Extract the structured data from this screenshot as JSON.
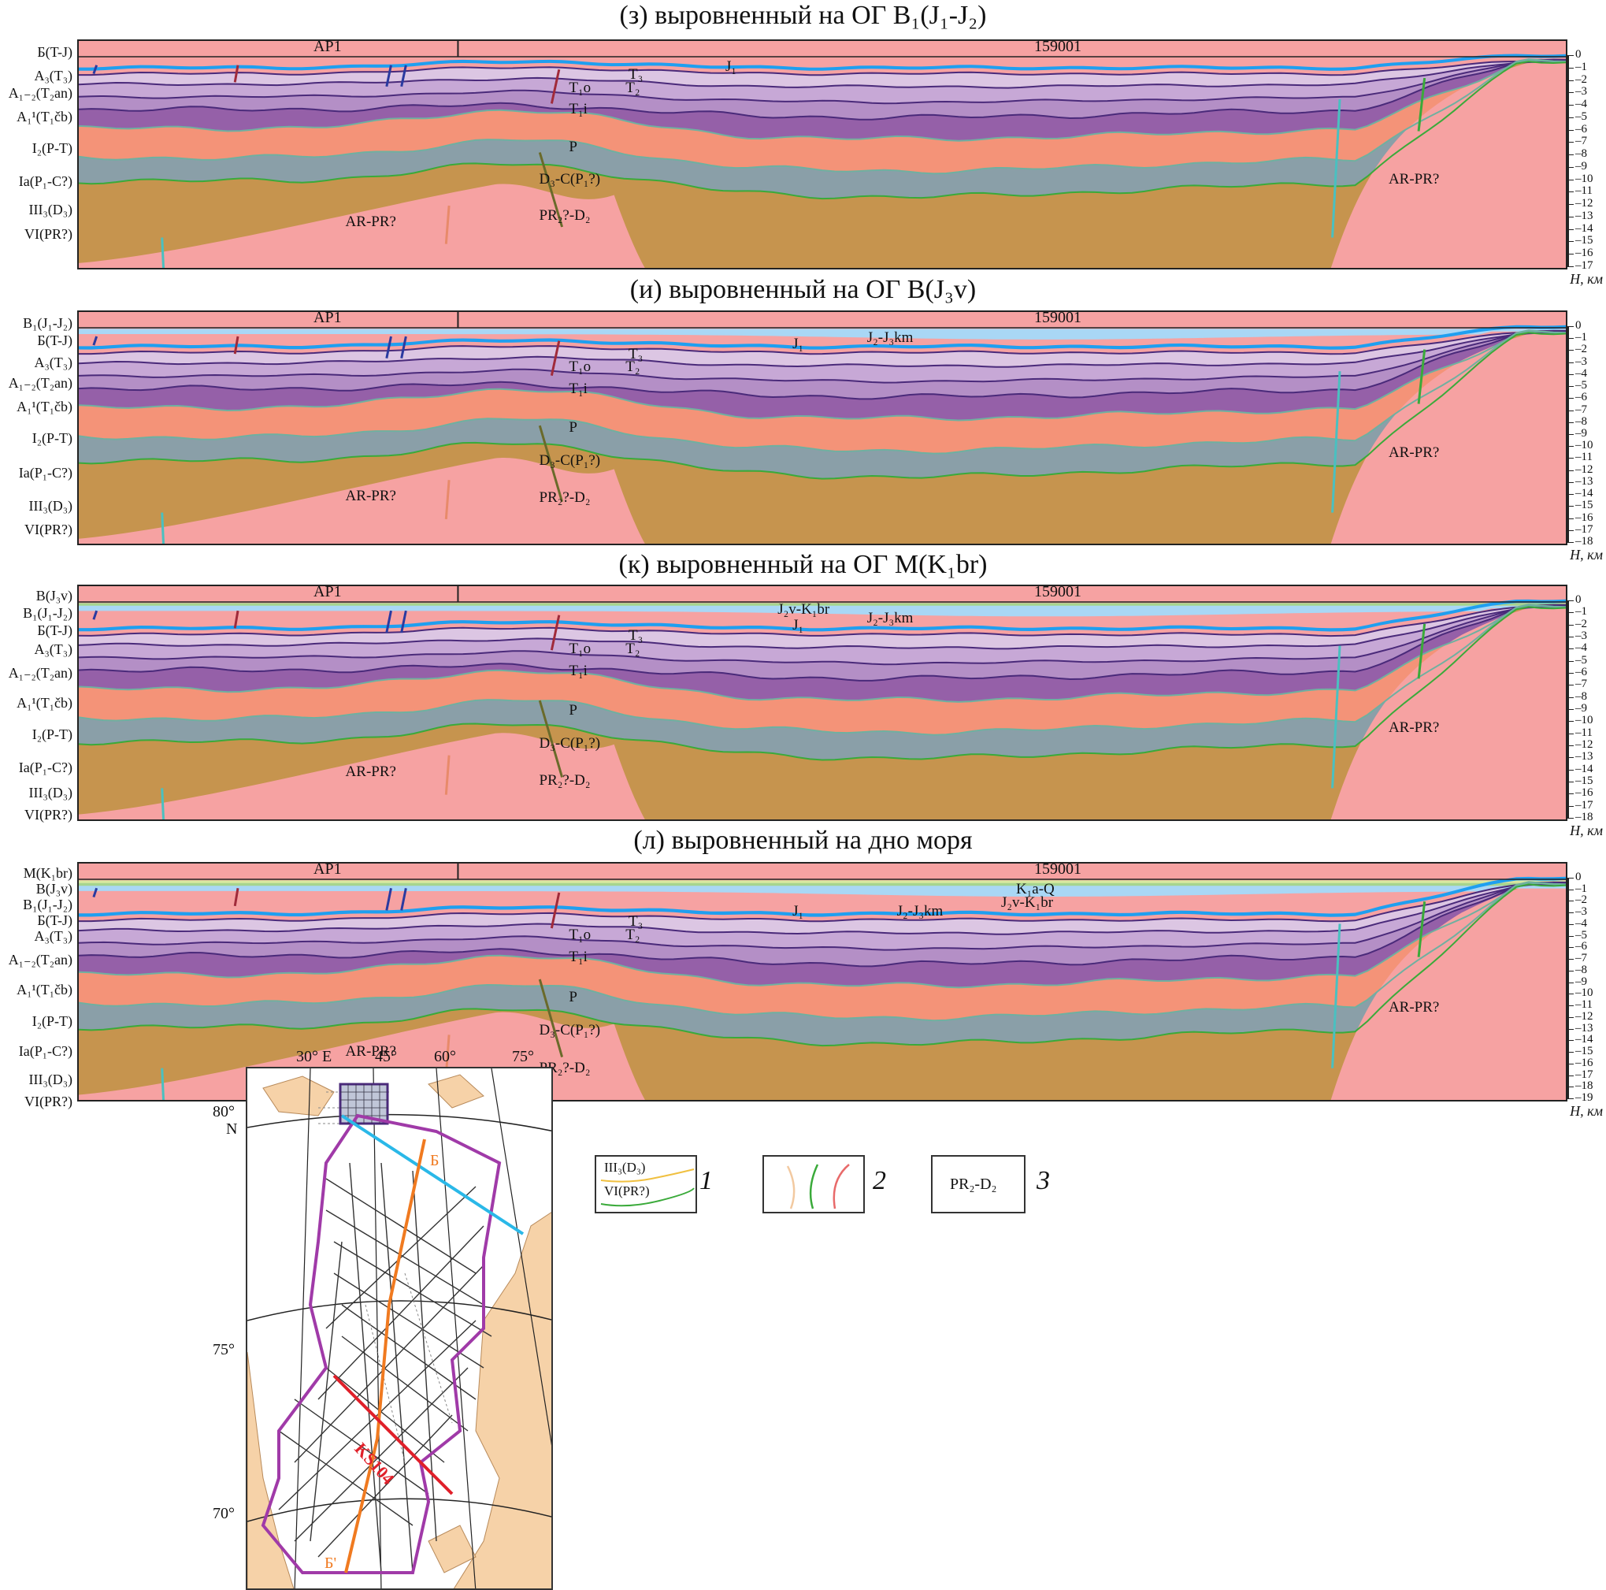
{
  "panels": [
    {
      "title": "(з) выровненный на ОГ B₁(J₁-J₂)",
      "horizons": [
        "Б(T-J)",
        "A₃(T₃)",
        "A₁₋₂(T₂an)",
        "A₁¹(T₁čb)",
        "I₂(P-T)",
        "Ia(P₁-C?)",
        "III₃(D₃)",
        "VI(PR?)"
      ],
      "profiles": [
        "AP1",
        "159001"
      ],
      "units": [
        "J₁",
        "T₃",
        "T₂",
        "T₁o",
        "T₁i",
        "P",
        "D₃-C(P₁?)",
        "PR₂?-D₂",
        "AR-PR?",
        "AR-PR?"
      ],
      "depth_ticks": [
        "0",
        "1",
        "2",
        "3",
        "4",
        "5",
        "6",
        "7",
        "8",
        "9",
        "10",
        "11",
        "12",
        "13",
        "14",
        "15",
        "16",
        "17"
      ],
      "depth_unit": "H, км"
    },
    {
      "title": "(и) выровненный на ОГ B(J₃v)",
      "horizons": [
        "B₁(J₁-J₂)",
        "Б(T-J)",
        "A₃(T₃)",
        "A₁₋₂(T₂an)",
        "A₁¹(T₁čb)",
        "I₂(P-T)",
        "Ia(P₁-C?)",
        "III₃(D₃)",
        "VI(PR?)"
      ],
      "profiles": [
        "AP1",
        "159001"
      ],
      "units": [
        "J₂-J₃km",
        "J₁",
        "T₃",
        "T₂",
        "T₁o",
        "T₁i",
        "P",
        "D₃-C(P₁?)",
        "PR₂?-D₂",
        "AR-PR?",
        "AR-PR?"
      ],
      "depth_ticks": [
        "0",
        "1",
        "2",
        "3",
        "4",
        "5",
        "6",
        "7",
        "8",
        "9",
        "10",
        "11",
        "12",
        "13",
        "14",
        "15",
        "16",
        "17",
        "18"
      ],
      "depth_unit": "H, км"
    },
    {
      "title": "(к) выровненный на ОГ M(K₁br)",
      "horizons": [
        "B(J₃v)",
        "B₁(J₁-J₂)",
        "Б(T-J)",
        "A₃(T₃)",
        "A₁₋₂(T₂an)",
        "A₁¹(T₁čb)",
        "I₂(P-T)",
        "Ia(P₁-C?)",
        "III₃(D₃)",
        "VI(PR?)"
      ],
      "profiles": [
        "AP1",
        "159001"
      ],
      "units": [
        "J₂v-K₁br",
        "J₂-J₃km",
        "J₁",
        "T₃",
        "T₂",
        "T₁o",
        "T₁i",
        "P",
        "D₃-C(P₁?)",
        "PR₂?-D₂",
        "AR-PR?",
        "AR-PR?"
      ],
      "depth_ticks": [
        "0",
        "1",
        "2",
        "3",
        "4",
        "5",
        "6",
        "7",
        "8",
        "9",
        "10",
        "11",
        "12",
        "13",
        "14",
        "15",
        "16",
        "17",
        "18"
      ],
      "depth_unit": "H, км"
    },
    {
      "title": "(л) выровненный на дно моря",
      "horizons": [
        "M(K₁br)",
        "B(J₃v)",
        "B₁(J₁-J₂)",
        "Б(T-J)",
        "A₃(T₃)",
        "A₁₋₂(T₂an)",
        "A₁¹(T₁čb)",
        "I₂(P-T)",
        "Ia(P₁-C?)",
        "III₃(D₃)",
        "VI(PR?)"
      ],
      "profiles": [
        "AP1",
        "159001"
      ],
      "units": [
        "K₁a-Q",
        "J₂v-K₁br",
        "J₂-J₃km",
        "J₁",
        "T₃",
        "T₂",
        "T₁o",
        "T₁i",
        "P",
        "D₃-C(P₁?)",
        "PR₂?-D₂",
        "AR-PR?",
        "AR-PR?"
      ],
      "depth_ticks": [
        "0",
        "1",
        "2",
        "3",
        "4",
        "5",
        "6",
        "7",
        "8",
        "9",
        "10",
        "11",
        "12",
        "13",
        "14",
        "15",
        "16",
        "17",
        "18",
        "19"
      ],
      "depth_unit": "H, км"
    }
  ],
  "map": {
    "lon_labels": [
      "30° E",
      "45°",
      "60°",
      "75°"
    ],
    "lat_labels": [
      "80°",
      "N",
      "75°",
      "70°"
    ],
    "profile_ends": [
      "Б",
      "Б'"
    ],
    "line_label": "KS104"
  },
  "legend": {
    "item1": {
      "labels": [
        "III₃(D₃)",
        "VI(PR?)"
      ],
      "number": "1"
    },
    "item2": {
      "number": "2"
    },
    "item3": {
      "label": "PR₂-D₂",
      "number": "3"
    }
  },
  "colors": {
    "J1": "#1f9ff0",
    "J2J3km": "#a9d7f5",
    "J2vK1br": "#a6d58e",
    "K1aQ": "#d8e8a0",
    "T3": "#dcc6e3",
    "T2": "#c7a8d6",
    "T1o": "#b48fc6",
    "T1i": "#9560a8",
    "P": "#f49378",
    "D3C": "#8a9fa8",
    "PR2D2": "#c6944e",
    "ARPR": "#f6a2a2",
    "horizon_line": "#4a2a7a"
  }
}
